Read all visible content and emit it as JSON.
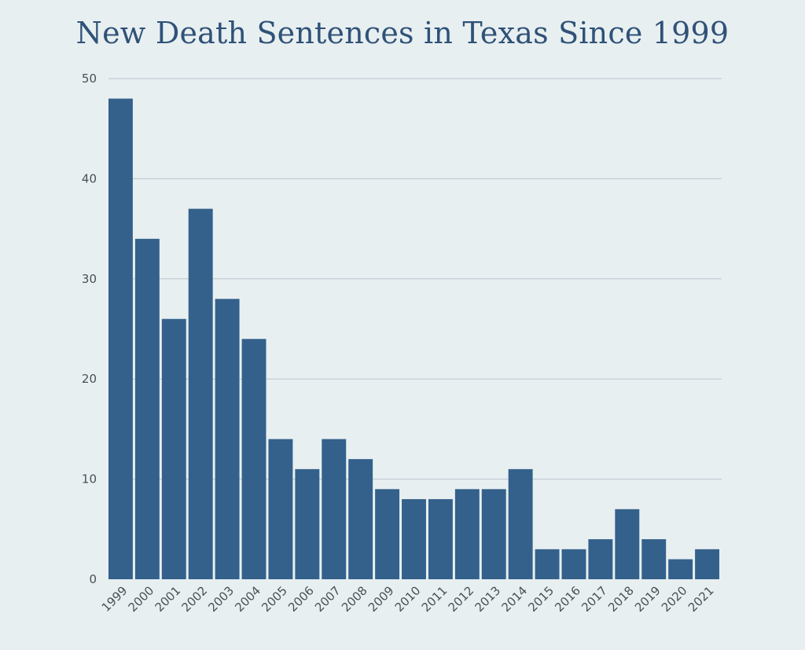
{
  "chart_data": {
    "type": "bar",
    "title": "New Death Sentences in Texas Since 1999",
    "xlabel": "",
    "ylabel": "",
    "categories": [
      "1999",
      "2000",
      "2001",
      "2002",
      "2003",
      "2004",
      "2005",
      "2006",
      "2007",
      "2008",
      "2009",
      "2010",
      "2011",
      "2012",
      "2013",
      "2014",
      "2015",
      "2016",
      "2017",
      "2018",
      "2019",
      "2020",
      "2021"
    ],
    "values": [
      48,
      34,
      26,
      37,
      28,
      24,
      14,
      11,
      14,
      12,
      9,
      8,
      8,
      9,
      9,
      11,
      3,
      3,
      4,
      7,
      4,
      2,
      3
    ],
    "ylim": [
      0,
      50
    ],
    "yticks": [
      0,
      10,
      20,
      30,
      40,
      50
    ],
    "grid": true,
    "legend": "none",
    "colors": {
      "bar": "#34618b",
      "background": "#e8eff1",
      "title": "#2f5277",
      "grid": "#b9c6cf"
    }
  }
}
